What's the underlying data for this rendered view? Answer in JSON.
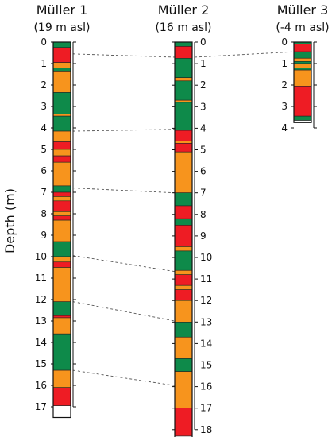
{
  "y_axis_label": "Depth (m)",
  "colors": {
    "red": "#ee1c24",
    "orange": "#f7941d",
    "green": "#0e8a4a",
    "white": "#ffffff"
  },
  "cores": [
    {
      "name": "Müller 1",
      "elevation": "(19 m asl)",
      "max_depth": 17,
      "total_depth": 17.5,
      "ticks": [
        "0",
        "1",
        "2",
        "3",
        "4",
        "5",
        "6",
        "7",
        "8",
        "9",
        "10",
        "11",
        "12",
        "13",
        "14",
        "15",
        "16",
        "17"
      ],
      "layers": [
        {
          "top": 0.0,
          "bottom": 0.25,
          "color": "green"
        },
        {
          "top": 0.25,
          "bottom": 0.95,
          "color": "red"
        },
        {
          "top": 0.95,
          "bottom": 1.2,
          "color": "orange"
        },
        {
          "top": 1.2,
          "bottom": 1.35,
          "color": "green"
        },
        {
          "top": 1.35,
          "bottom": 2.35,
          "color": "orange"
        },
        {
          "top": 2.35,
          "bottom": 3.35,
          "color": "green"
        },
        {
          "top": 3.35,
          "bottom": 3.45,
          "color": "orange"
        },
        {
          "top": 3.45,
          "bottom": 4.15,
          "color": "green"
        },
        {
          "top": 4.15,
          "bottom": 4.65,
          "color": "orange"
        },
        {
          "top": 4.65,
          "bottom": 5.0,
          "color": "red"
        },
        {
          "top": 5.0,
          "bottom": 5.3,
          "color": "orange"
        },
        {
          "top": 5.3,
          "bottom": 5.6,
          "color": "red"
        },
        {
          "top": 5.6,
          "bottom": 6.7,
          "color": "orange"
        },
        {
          "top": 6.7,
          "bottom": 7.0,
          "color": "green"
        },
        {
          "top": 7.0,
          "bottom": 7.2,
          "color": "red"
        },
        {
          "top": 7.2,
          "bottom": 7.4,
          "color": "orange"
        },
        {
          "top": 7.4,
          "bottom": 7.9,
          "color": "red"
        },
        {
          "top": 7.9,
          "bottom": 8.1,
          "color": "orange"
        },
        {
          "top": 8.1,
          "bottom": 8.3,
          "color": "red"
        },
        {
          "top": 8.3,
          "bottom": 9.3,
          "color": "orange"
        },
        {
          "top": 9.3,
          "bottom": 10.0,
          "color": "green"
        },
        {
          "top": 10.0,
          "bottom": 10.25,
          "color": "orange"
        },
        {
          "top": 10.25,
          "bottom": 10.5,
          "color": "red"
        },
        {
          "top": 10.5,
          "bottom": 12.1,
          "color": "orange"
        },
        {
          "top": 12.1,
          "bottom": 12.75,
          "color": "green"
        },
        {
          "top": 12.75,
          "bottom": 12.85,
          "color": "red"
        },
        {
          "top": 12.85,
          "bottom": 13.6,
          "color": "orange"
        },
        {
          "top": 13.6,
          "bottom": 15.3,
          "color": "green"
        },
        {
          "top": 15.3,
          "bottom": 16.1,
          "color": "orange"
        },
        {
          "top": 16.1,
          "bottom": 16.95,
          "color": "red"
        },
        {
          "top": 16.95,
          "bottom": 17.5,
          "color": "white"
        }
      ]
    },
    {
      "name": "Müller 2",
      "elevation": "(16 m asl)",
      "max_depth": 18,
      "total_depth": 18.7,
      "ticks": [
        "0",
        "1",
        "2",
        "3",
        "4",
        "5",
        "6",
        "7",
        "8",
        "9",
        "10",
        "11",
        "12",
        "13",
        "14",
        "15",
        "16",
        "17",
        "18"
      ],
      "layers": [
        {
          "top": 0.0,
          "bottom": 0.2,
          "color": "green"
        },
        {
          "top": 0.2,
          "bottom": 0.75,
          "color": "red"
        },
        {
          "top": 0.75,
          "bottom": 1.65,
          "color": "green"
        },
        {
          "top": 1.65,
          "bottom": 1.8,
          "color": "orange"
        },
        {
          "top": 1.8,
          "bottom": 2.7,
          "color": "green"
        },
        {
          "top": 2.7,
          "bottom": 2.8,
          "color": "orange"
        },
        {
          "top": 2.8,
          "bottom": 4.1,
          "color": "green"
        },
        {
          "top": 4.1,
          "bottom": 4.6,
          "color": "red"
        },
        {
          "top": 4.6,
          "bottom": 4.7,
          "color": "orange"
        },
        {
          "top": 4.7,
          "bottom": 5.1,
          "color": "red"
        },
        {
          "top": 5.1,
          "bottom": 7.0,
          "color": "orange"
        },
        {
          "top": 7.0,
          "bottom": 7.6,
          "color": "green"
        },
        {
          "top": 7.6,
          "bottom": 8.2,
          "color": "red"
        },
        {
          "top": 8.2,
          "bottom": 8.5,
          "color": "green"
        },
        {
          "top": 8.5,
          "bottom": 9.5,
          "color": "red"
        },
        {
          "top": 9.5,
          "bottom": 9.7,
          "color": "orange"
        },
        {
          "top": 9.7,
          "bottom": 10.6,
          "color": "green"
        },
        {
          "top": 10.6,
          "bottom": 10.8,
          "color": "orange"
        },
        {
          "top": 10.8,
          "bottom": 11.3,
          "color": "red"
        },
        {
          "top": 11.3,
          "bottom": 11.5,
          "color": "orange"
        },
        {
          "top": 11.5,
          "bottom": 12.0,
          "color": "red"
        },
        {
          "top": 12.0,
          "bottom": 13.0,
          "color": "orange"
        },
        {
          "top": 13.0,
          "bottom": 13.7,
          "color": "green"
        },
        {
          "top": 13.7,
          "bottom": 14.7,
          "color": "orange"
        },
        {
          "top": 14.7,
          "bottom": 15.3,
          "color": "green"
        },
        {
          "top": 15.3,
          "bottom": 17.0,
          "color": "orange"
        },
        {
          "top": 17.0,
          "bottom": 18.3,
          "color": "red"
        },
        {
          "top": 18.3,
          "bottom": 18.7,
          "color": "white"
        }
      ]
    },
    {
      "name": "Müller 3",
      "elevation": "(-4 m asl)",
      "max_depth": 4,
      "total_depth": 3.75,
      "ticks": [
        "0",
        "1",
        "2",
        "3",
        "4"
      ],
      "layers": [
        {
          "top": 0.0,
          "bottom": 0.1,
          "color": "green"
        },
        {
          "top": 0.1,
          "bottom": 0.45,
          "color": "red"
        },
        {
          "top": 0.45,
          "bottom": 0.75,
          "color": "green"
        },
        {
          "top": 0.75,
          "bottom": 0.9,
          "color": "orange"
        },
        {
          "top": 0.9,
          "bottom": 1.0,
          "color": "green"
        },
        {
          "top": 1.0,
          "bottom": 1.2,
          "color": "orange"
        },
        {
          "top": 1.2,
          "bottom": 1.3,
          "color": "green"
        },
        {
          "top": 1.3,
          "bottom": 2.05,
          "color": "orange"
        },
        {
          "top": 2.05,
          "bottom": 3.45,
          "color": "red"
        },
        {
          "top": 3.45,
          "bottom": 3.65,
          "color": "green"
        },
        {
          "top": 3.65,
          "bottom": 3.75,
          "color": "white"
        }
      ]
    }
  ],
  "correlations": [
    {
      "from_core": 0,
      "from_depth": 0.55,
      "to_core": 1,
      "to_depth": 0.7
    },
    {
      "from_core": 1,
      "from_depth": 0.7,
      "to_core": 2,
      "to_depth": 0.45
    },
    {
      "from_core": 0,
      "from_depth": 4.15,
      "to_core": 1,
      "to_depth": 4.05
    },
    {
      "from_core": 0,
      "from_depth": 6.8,
      "to_core": 1,
      "to_depth": 7.0
    },
    {
      "from_core": 0,
      "from_depth": 9.95,
      "to_core": 1,
      "to_depth": 10.65
    },
    {
      "from_core": 0,
      "from_depth": 12.1,
      "to_core": 1,
      "to_depth": 12.95
    },
    {
      "from_core": 0,
      "from_depth": 15.3,
      "to_core": 1,
      "to_depth": 15.95
    }
  ]
}
